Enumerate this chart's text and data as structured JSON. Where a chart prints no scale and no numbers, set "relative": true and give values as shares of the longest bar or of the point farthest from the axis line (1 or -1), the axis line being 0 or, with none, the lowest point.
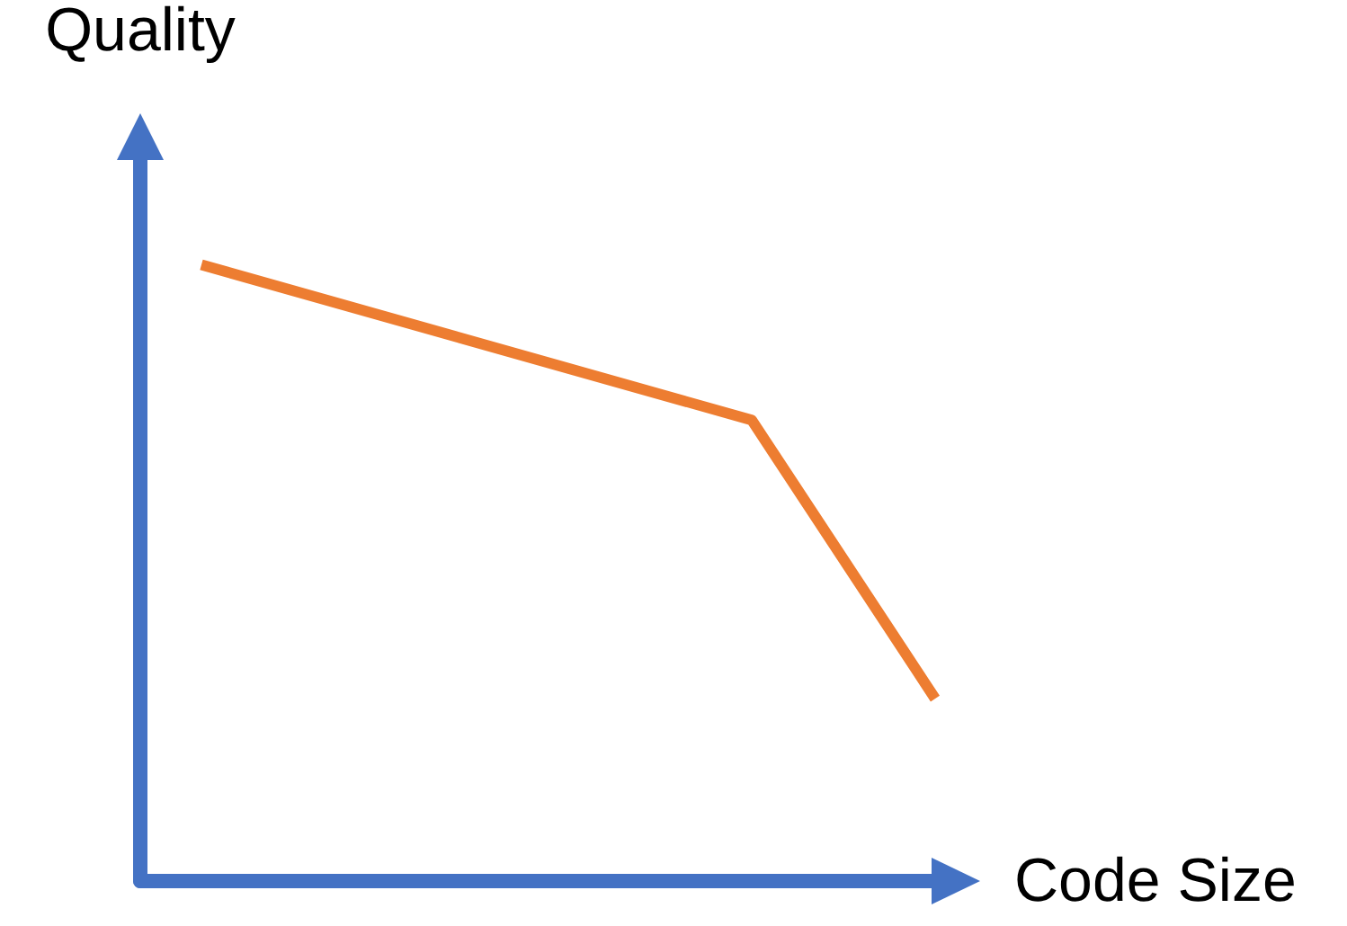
{
  "chart_data": {
    "type": "line",
    "xlabel": "Code Size",
    "ylabel": "Quality",
    "relative": true,
    "marker": "none",
    "categories": [
      null,
      null,
      null,
      null,
      null,
      null,
      null,
      null,
      null,
      null,
      null,
      null,
      null,
      null
    ],
    "series": [
      {
        "color": "#ed7d31",
        "values": [
          null,
          1,
          null,
          null,
          null,
          null,
          null,
          null,
          null,
          null,
          0.748,
          null,
          null,
          0.296
        ]
      }
    ]
  }
}
